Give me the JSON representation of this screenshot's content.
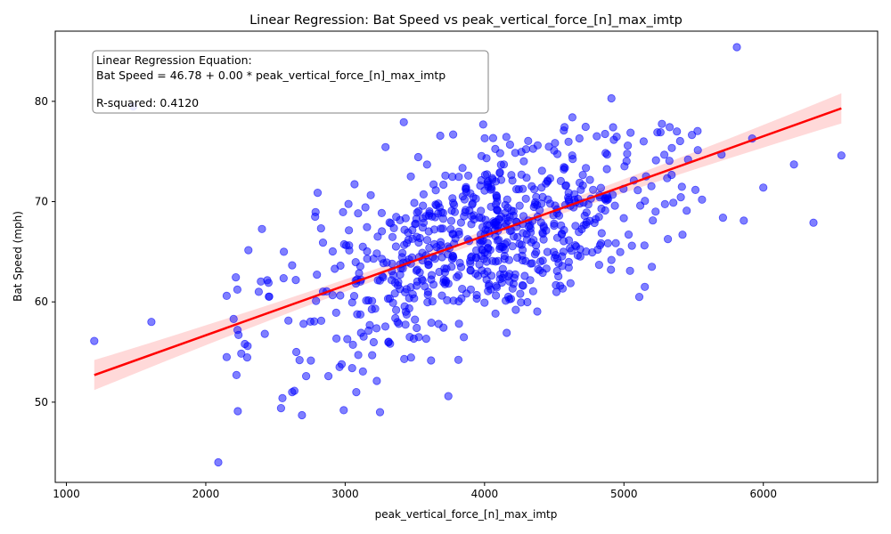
{
  "chart_data": {
    "type": "scatter",
    "title": "Linear Regression: Bat Speed vs peak_vertical_force_[n]_max_imtp",
    "xlabel": "peak_vertical_force_[n]_max_imtp",
    "ylabel": "Bat Speed (mph)",
    "xlim": [
      920,
      6820
    ],
    "ylim": [
      42,
      87
    ],
    "xticks": [
      1000,
      2000,
      3000,
      4000,
      5000,
      6000
    ],
    "yticks": [
      50,
      60,
      70,
      80
    ],
    "grid": false,
    "annotation": {
      "line1": "Linear Regression Equation:",
      "line2": "Bat Speed = 46.78 + 0.00 * peak_vertical_force_[n]_max_imtp",
      "line3": "",
      "line4": "R-squared: 0.4120",
      "placement": "top-left"
    },
    "regression": {
      "intercept": 46.78,
      "x_range": [
        1200,
        6560
      ],
      "y_at_start": 52.7,
      "y_at_end": 79.3,
      "ci_halfwidth_at_ends": 1.5,
      "ci_halfwidth_at_center": 0.5,
      "color": "#ff0000",
      "band_color": "#ffc0c0"
    },
    "points_color": "#0000ff",
    "outlier_points": [
      [
        1200,
        56.1
      ],
      [
        1480,
        79.5
      ],
      [
        2090,
        44.0
      ],
      [
        2150,
        54.5
      ],
      [
        2150,
        60.6
      ],
      [
        2200,
        58.3
      ],
      [
        2220,
        52.7
      ],
      [
        2230,
        49.1
      ],
      [
        2280,
        55.8
      ],
      [
        2300,
        55.6
      ],
      [
        2380,
        61.0
      ],
      [
        2540,
        49.4
      ],
      [
        2550,
        50.4
      ],
      [
        2560,
        65.0
      ],
      [
        2690,
        48.7
      ],
      [
        3250,
        49.0
      ],
      [
        3740,
        50.6
      ],
      [
        4630,
        78.4
      ],
      [
        4910,
        80.3
      ],
      [
        5810,
        85.4
      ],
      [
        6220,
        73.7
      ],
      [
        6360,
        67.9
      ],
      [
        6560,
        74.6
      ],
      [
        6000,
        71.4
      ],
      [
        5920,
        76.3
      ],
      [
        5700,
        74.7
      ],
      [
        5710,
        68.4
      ],
      [
        5860,
        68.1
      ],
      [
        5560,
        70.2
      ],
      [
        5420,
        66.7
      ],
      [
        5450,
        69.1
      ],
      [
        5380,
        77.0
      ],
      [
        5150,
        61.5
      ],
      [
        5110,
        60.5
      ],
      [
        5200,
        63.5
      ],
      [
        2720,
        52.6
      ],
      [
        2880,
        52.6
      ],
      [
        2960,
        53.5
      ],
      [
        3080,
        51.0
      ],
      [
        2990,
        49.2
      ],
      [
        3050,
        53.4
      ],
      [
        1610,
        58.0
      ],
      [
        2450,
        61.9
      ],
      [
        2620,
        51.0
      ],
      [
        2650,
        55.0
      ]
    ],
    "cluster": {
      "count": 720,
      "x_mean": 4000,
      "x_sd": 660,
      "x_min": 2100,
      "x_max": 5600,
      "slope": 0.00496,
      "intercept": 46.78,
      "residual_sd": 4.4,
      "seed": 20240611
    }
  }
}
